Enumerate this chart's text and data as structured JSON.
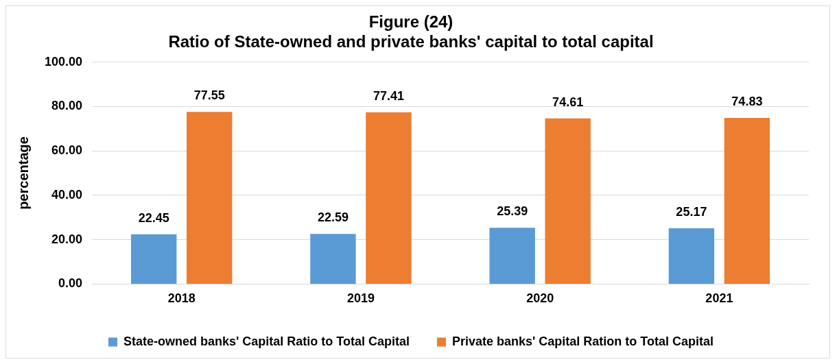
{
  "chart_data": {
    "type": "bar",
    "title": "Figure (24)",
    "subtitle": "Ratio of State-owned and private banks' capital to total capital",
    "ylabel": "percentage",
    "categories": [
      "2018",
      "2019",
      "2020",
      "2021"
    ],
    "series": [
      {
        "name": "State-owned banks' Capital Ratio to Total Capital",
        "color": "#5b9bd5",
        "values": [
          22.45,
          22.59,
          25.39,
          25.17
        ]
      },
      {
        "name": "Private banks' Capital Ration to Total Capital",
        "color": "#ed7d31",
        "values": [
          77.55,
          77.41,
          74.61,
          74.83
        ]
      }
    ],
    "ylim": [
      0,
      100
    ],
    "yticks": [
      {
        "value": 0,
        "label": "0.00"
      },
      {
        "value": 20,
        "label": "20.00"
      },
      {
        "value": 40,
        "label": "40.00"
      },
      {
        "value": 60,
        "label": "60.00"
      },
      {
        "value": 80,
        "label": "80.00"
      },
      {
        "value": 100,
        "label": "100.00"
      }
    ],
    "grid": "y",
    "legend": "bottom",
    "data_labels": true
  }
}
